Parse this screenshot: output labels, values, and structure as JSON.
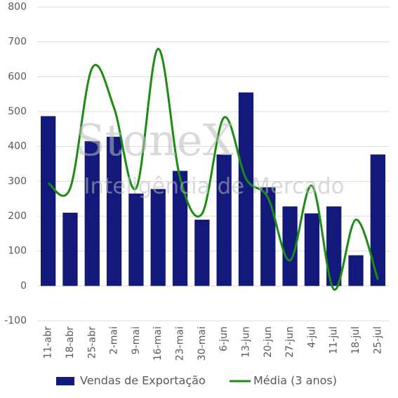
{
  "chart_data": {
    "type": "bar",
    "watermark": {
      "title": "StoneX",
      "subtitle": "Inteligência de Mercado"
    },
    "categories": [
      "11-abr",
      "18-abr",
      "25-abr",
      "2-mai",
      "9-mai",
      "16-mai",
      "23-mai",
      "30-mai",
      "6-jun",
      "13-jun",
      "20-jun",
      "27-jun",
      "4-jul",
      "11-jul",
      "18-jul",
      "25-jul"
    ],
    "series": [
      {
        "name": "Vendas de Exportação",
        "type": "bar",
        "color": "#12197a",
        "values": [
          487,
          210,
          415,
          428,
          265,
          278,
          330,
          190,
          377,
          555,
          283,
          228,
          208,
          228,
          88,
          377
        ]
      },
      {
        "name": "Média (3 anos)",
        "type": "line",
        "smooth": true,
        "color": "#1a8c12",
        "values": [
          295,
          280,
          625,
          510,
          280,
          680,
          310,
          207,
          483,
          308,
          253,
          73,
          287,
          -10,
          190,
          18
        ]
      }
    ],
    "ylim": [
      -100,
      800
    ],
    "yticks": [
      -100,
      0,
      100,
      200,
      300,
      400,
      500,
      600,
      700,
      800
    ],
    "grid": true,
    "legend": "bottom"
  }
}
